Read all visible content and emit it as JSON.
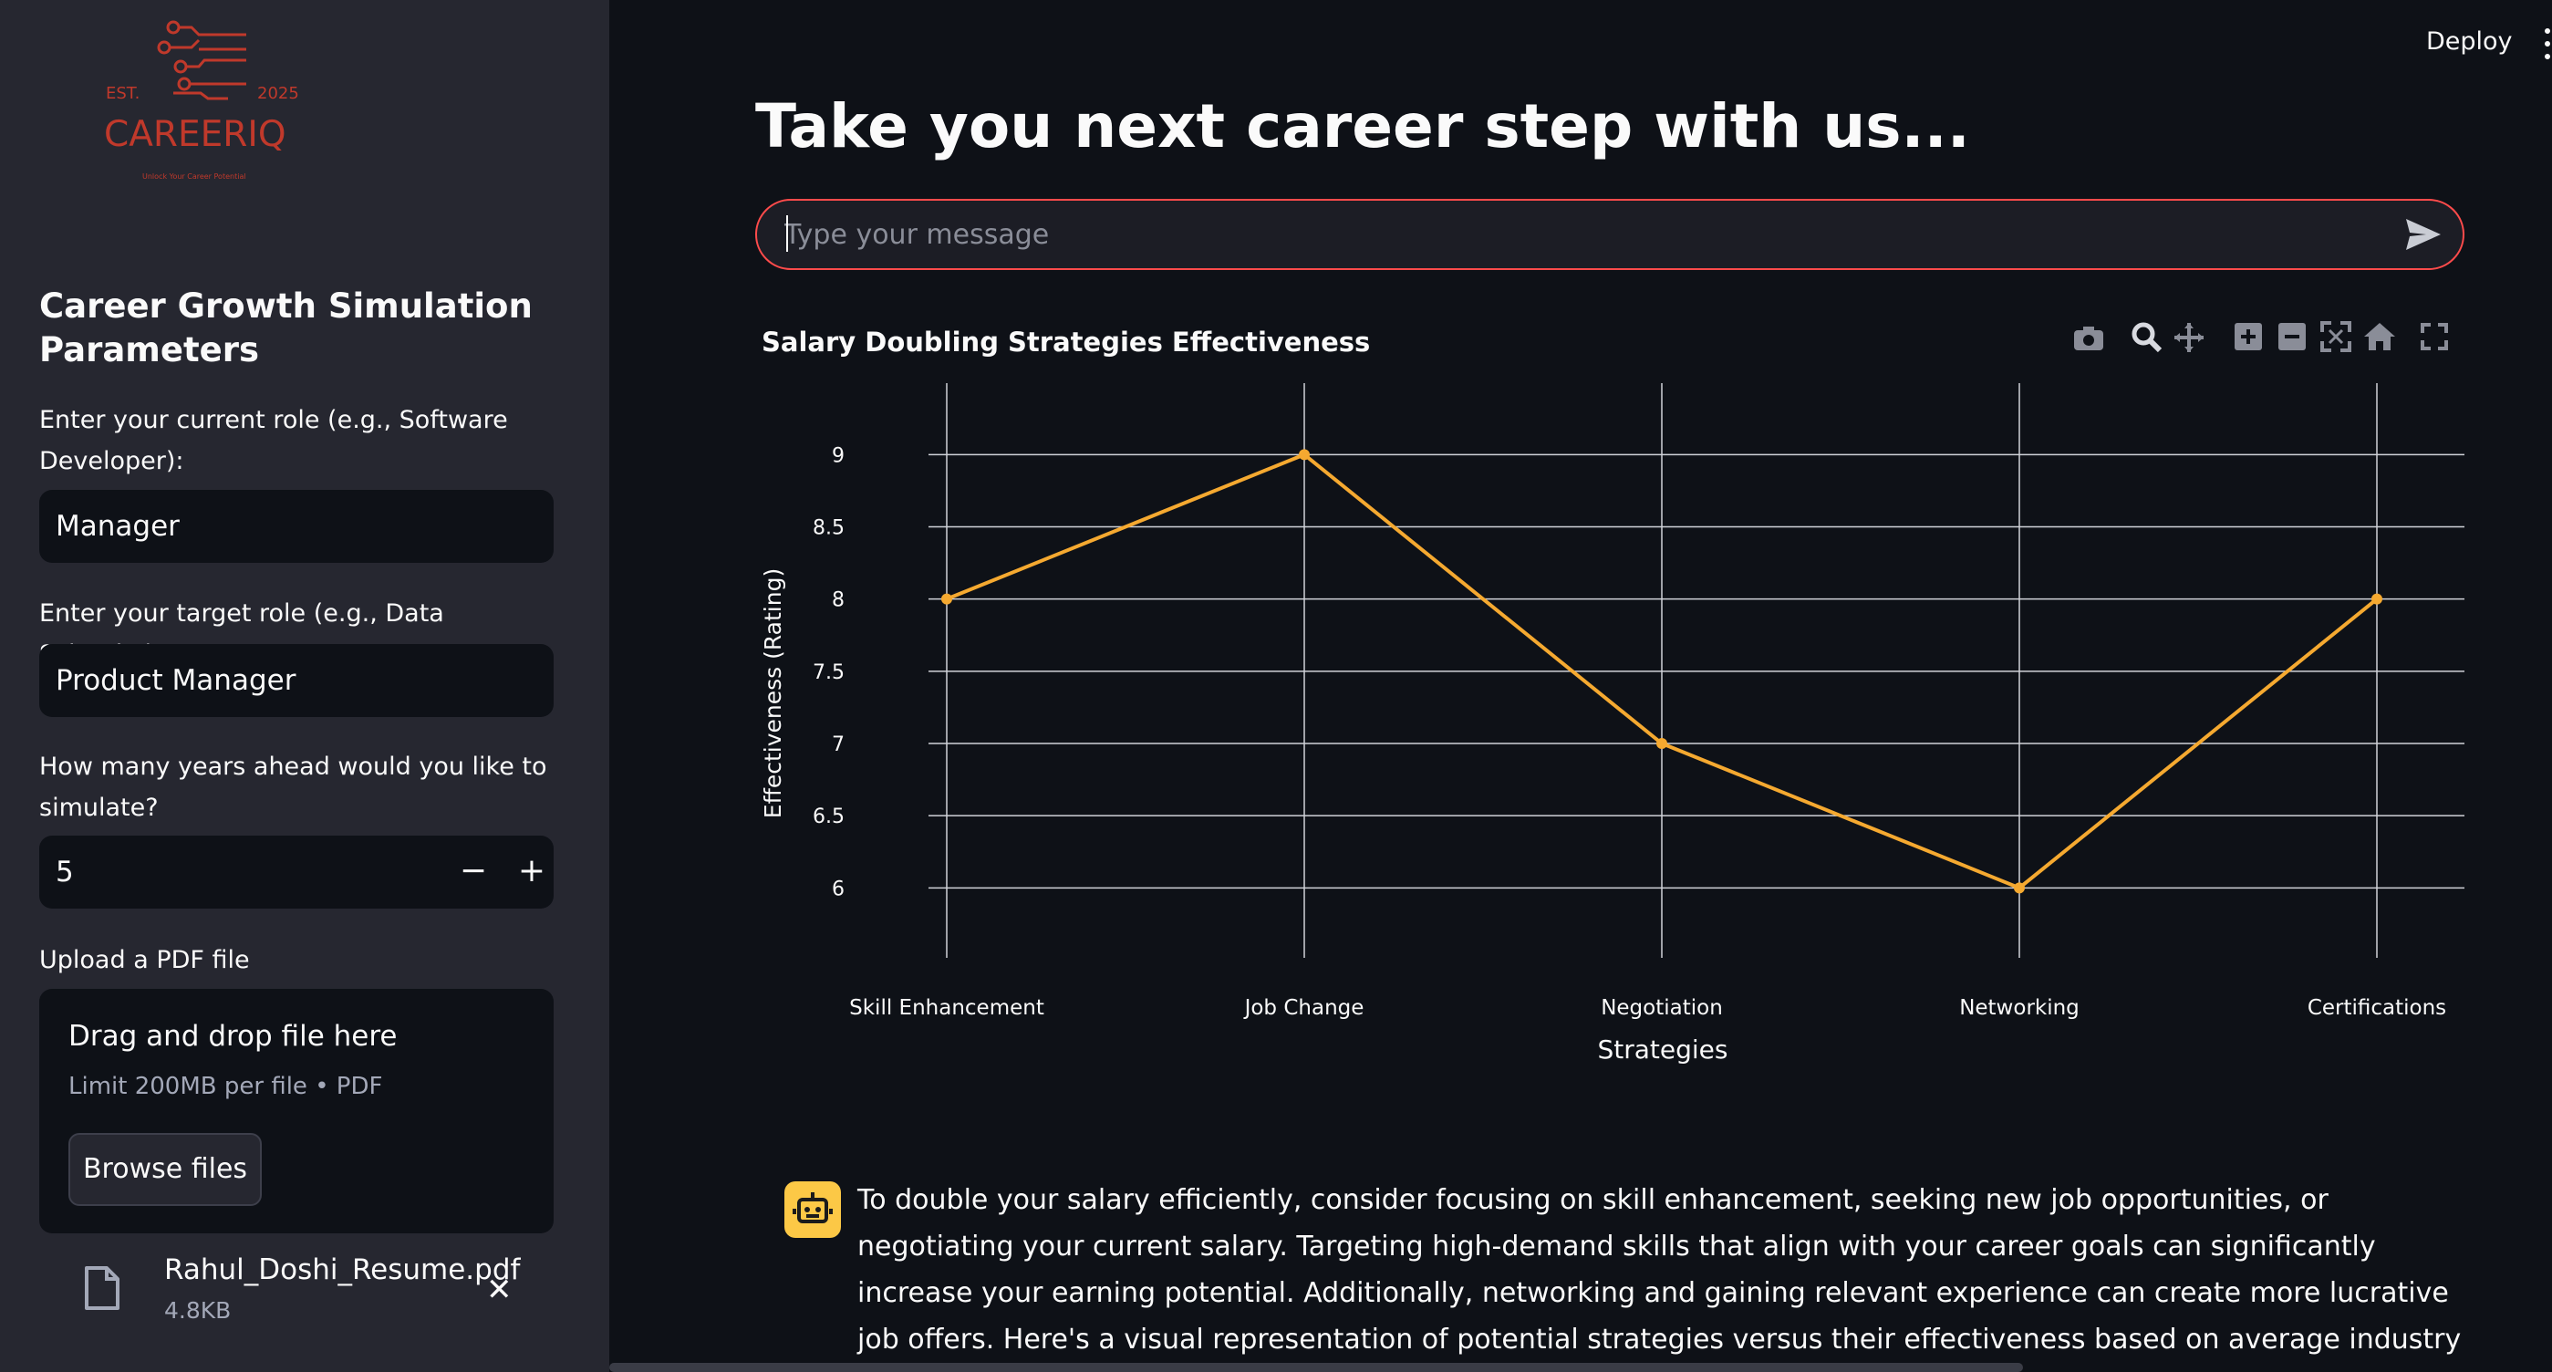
{
  "sidebar": {
    "logo": {
      "brand": "CAREERIQ",
      "est_left": "EST.",
      "est_right": "2025",
      "tagline": "Unlock Your Career Potential"
    },
    "heading": "Career Growth Simulation Parameters",
    "current_role_label": "Enter your current role (e.g., Software Developer):",
    "current_role_value": "Manager",
    "target_role_label": "Enter your target role (e.g., Data Scientist):",
    "target_role_value": "Product Manager",
    "years_label": "How many years ahead would you like to simulate?",
    "years_value": "5",
    "minus": "−",
    "plus": "+",
    "upload_label": "Upload a PDF file",
    "dropzone_title": "Drag and drop file here",
    "dropzone_limit": "Limit 200MB per file • PDF",
    "browse_label": "Browse files",
    "file_name": "Rahul_Doshi_Resume.pdf",
    "file_size": "4.8KB",
    "remove": "✕"
  },
  "header": {
    "deploy_label": "Deploy"
  },
  "main": {
    "title": "Take you next career step with us...",
    "chat_placeholder": "Type your message",
    "answer": "To double your salary efficiently, consider focusing on skill enhancement, seeking new job opportunities, or negotiating your current salary. Targeting high-demand skills that align with your career goals can significantly increase your earning potential. Additionally, networking and gaining relevant experience can create more lucrative job offers. Here's a visual representation of potential strategies versus their effectiveness based on average industry standards."
  },
  "icons": {
    "modebar": [
      "camera-icon",
      "zoom-icon",
      "pan-icon",
      "zoom-in-icon",
      "zoom-out-icon",
      "autoscale-icon",
      "reset-axes-icon",
      "fullscreen-icon"
    ],
    "send": "send-icon",
    "file": "file-icon",
    "bot": "robot-icon"
  },
  "colors": {
    "accent": "#ff4b4b",
    "line": "#f5a930",
    "bot": "#fcc846",
    "bg": "#0e1117",
    "sidebar": "#262730",
    "brand": "#c0392b"
  },
  "chart_data": {
    "type": "line",
    "title": "Salary Doubling Strategies Effectiveness",
    "xlabel": "Strategies",
    "ylabel": "Effectiveness (Rating)",
    "categories": [
      "Skill Enhancement",
      "Job Change",
      "Negotiation",
      "Networking",
      "Certifications"
    ],
    "values": [
      8,
      9,
      7,
      6,
      8
    ],
    "ylim": [
      5.8,
      9.4
    ],
    "yticks": [
      6,
      6.5,
      7,
      7.5,
      8,
      8.5,
      9
    ],
    "grid": true,
    "legend": "none"
  }
}
